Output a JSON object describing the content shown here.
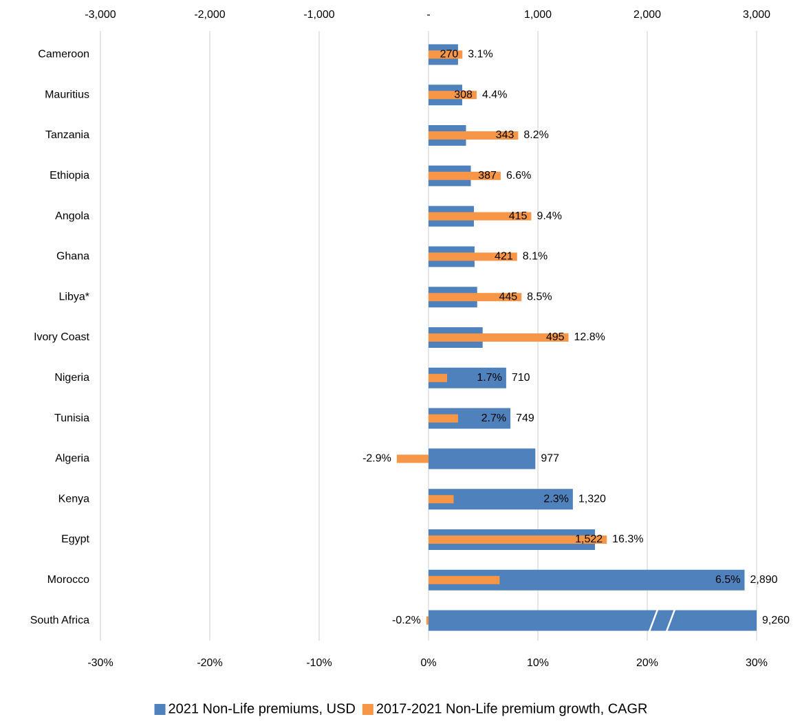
{
  "chart_data": {
    "type": "bar",
    "orientation": "horizontal",
    "categories": [
      "Cameroon",
      "Mauritius",
      "Tanzania",
      "Ethiopia",
      "Angola",
      "Ghana",
      "Libya*",
      "Ivory Coast",
      "Nigeria",
      "Tunisia",
      "Algeria",
      "Kenya",
      "Egypt",
      "Morocco",
      "South Africa"
    ],
    "series": [
      {
        "name": "2021 Non-Life premiums, USD",
        "color": "#4f81bd",
        "axis": "x2",
        "values": [
          270,
          308,
          343,
          387,
          415,
          421,
          445,
          495,
          710,
          749,
          977,
          1320,
          1522,
          2890,
          9260
        ],
        "value_labels": [
          "270",
          "308",
          "343",
          "387",
          "415",
          "421",
          "445",
          "495",
          "710",
          "749",
          "977",
          "1,320",
          "1,522",
          "2,890",
          "9,260"
        ]
      },
      {
        "name": "2017-2021 Non-Life premium growth, CAGR",
        "color": "#f79646",
        "values": [
          3.1,
          4.4,
          8.2,
          6.6,
          9.4,
          8.1,
          8.5,
          12.8,
          1.7,
          2.7,
          -2.9,
          2.3,
          16.3,
          6.5,
          -0.2
        ],
        "value_labels": [
          "3.1%",
          "4.4%",
          "8.2%",
          "6.6%",
          "9.4%",
          "8.1%",
          "8.5%",
          "12.8%",
          "1.7%",
          "2.7%",
          "-2.9%",
          "2.3%",
          "16.3%",
          "6.5%",
          "-0.2%"
        ]
      }
    ],
    "xlim": [
      -30,
      30
    ],
    "xticks": [
      {
        "value": -30,
        "label": "-30%"
      },
      {
        "value": -20,
        "label": "-20%"
      },
      {
        "value": -10,
        "label": "-10%"
      },
      {
        "value": 0,
        "label": "0%"
      },
      {
        "value": 10,
        "label": "10%"
      },
      {
        "value": 20,
        "label": "20%"
      },
      {
        "value": 30,
        "label": "30%"
      }
    ],
    "x2lim": [
      -3000,
      3000
    ],
    "x2ticks": [
      {
        "value": -3000,
        "label": "-3,000"
      },
      {
        "value": -2000,
        "label": "-2,000"
      },
      {
        "value": -1000,
        "label": "-1,000"
      },
      {
        "value": 0,
        "label": "-"
      },
      {
        "value": 1000,
        "label": "1,000"
      },
      {
        "value": 2000,
        "label": "2,000"
      },
      {
        "value": 3000,
        "label": "3,000"
      }
    ],
    "grid": true,
    "legend": "bottom"
  }
}
